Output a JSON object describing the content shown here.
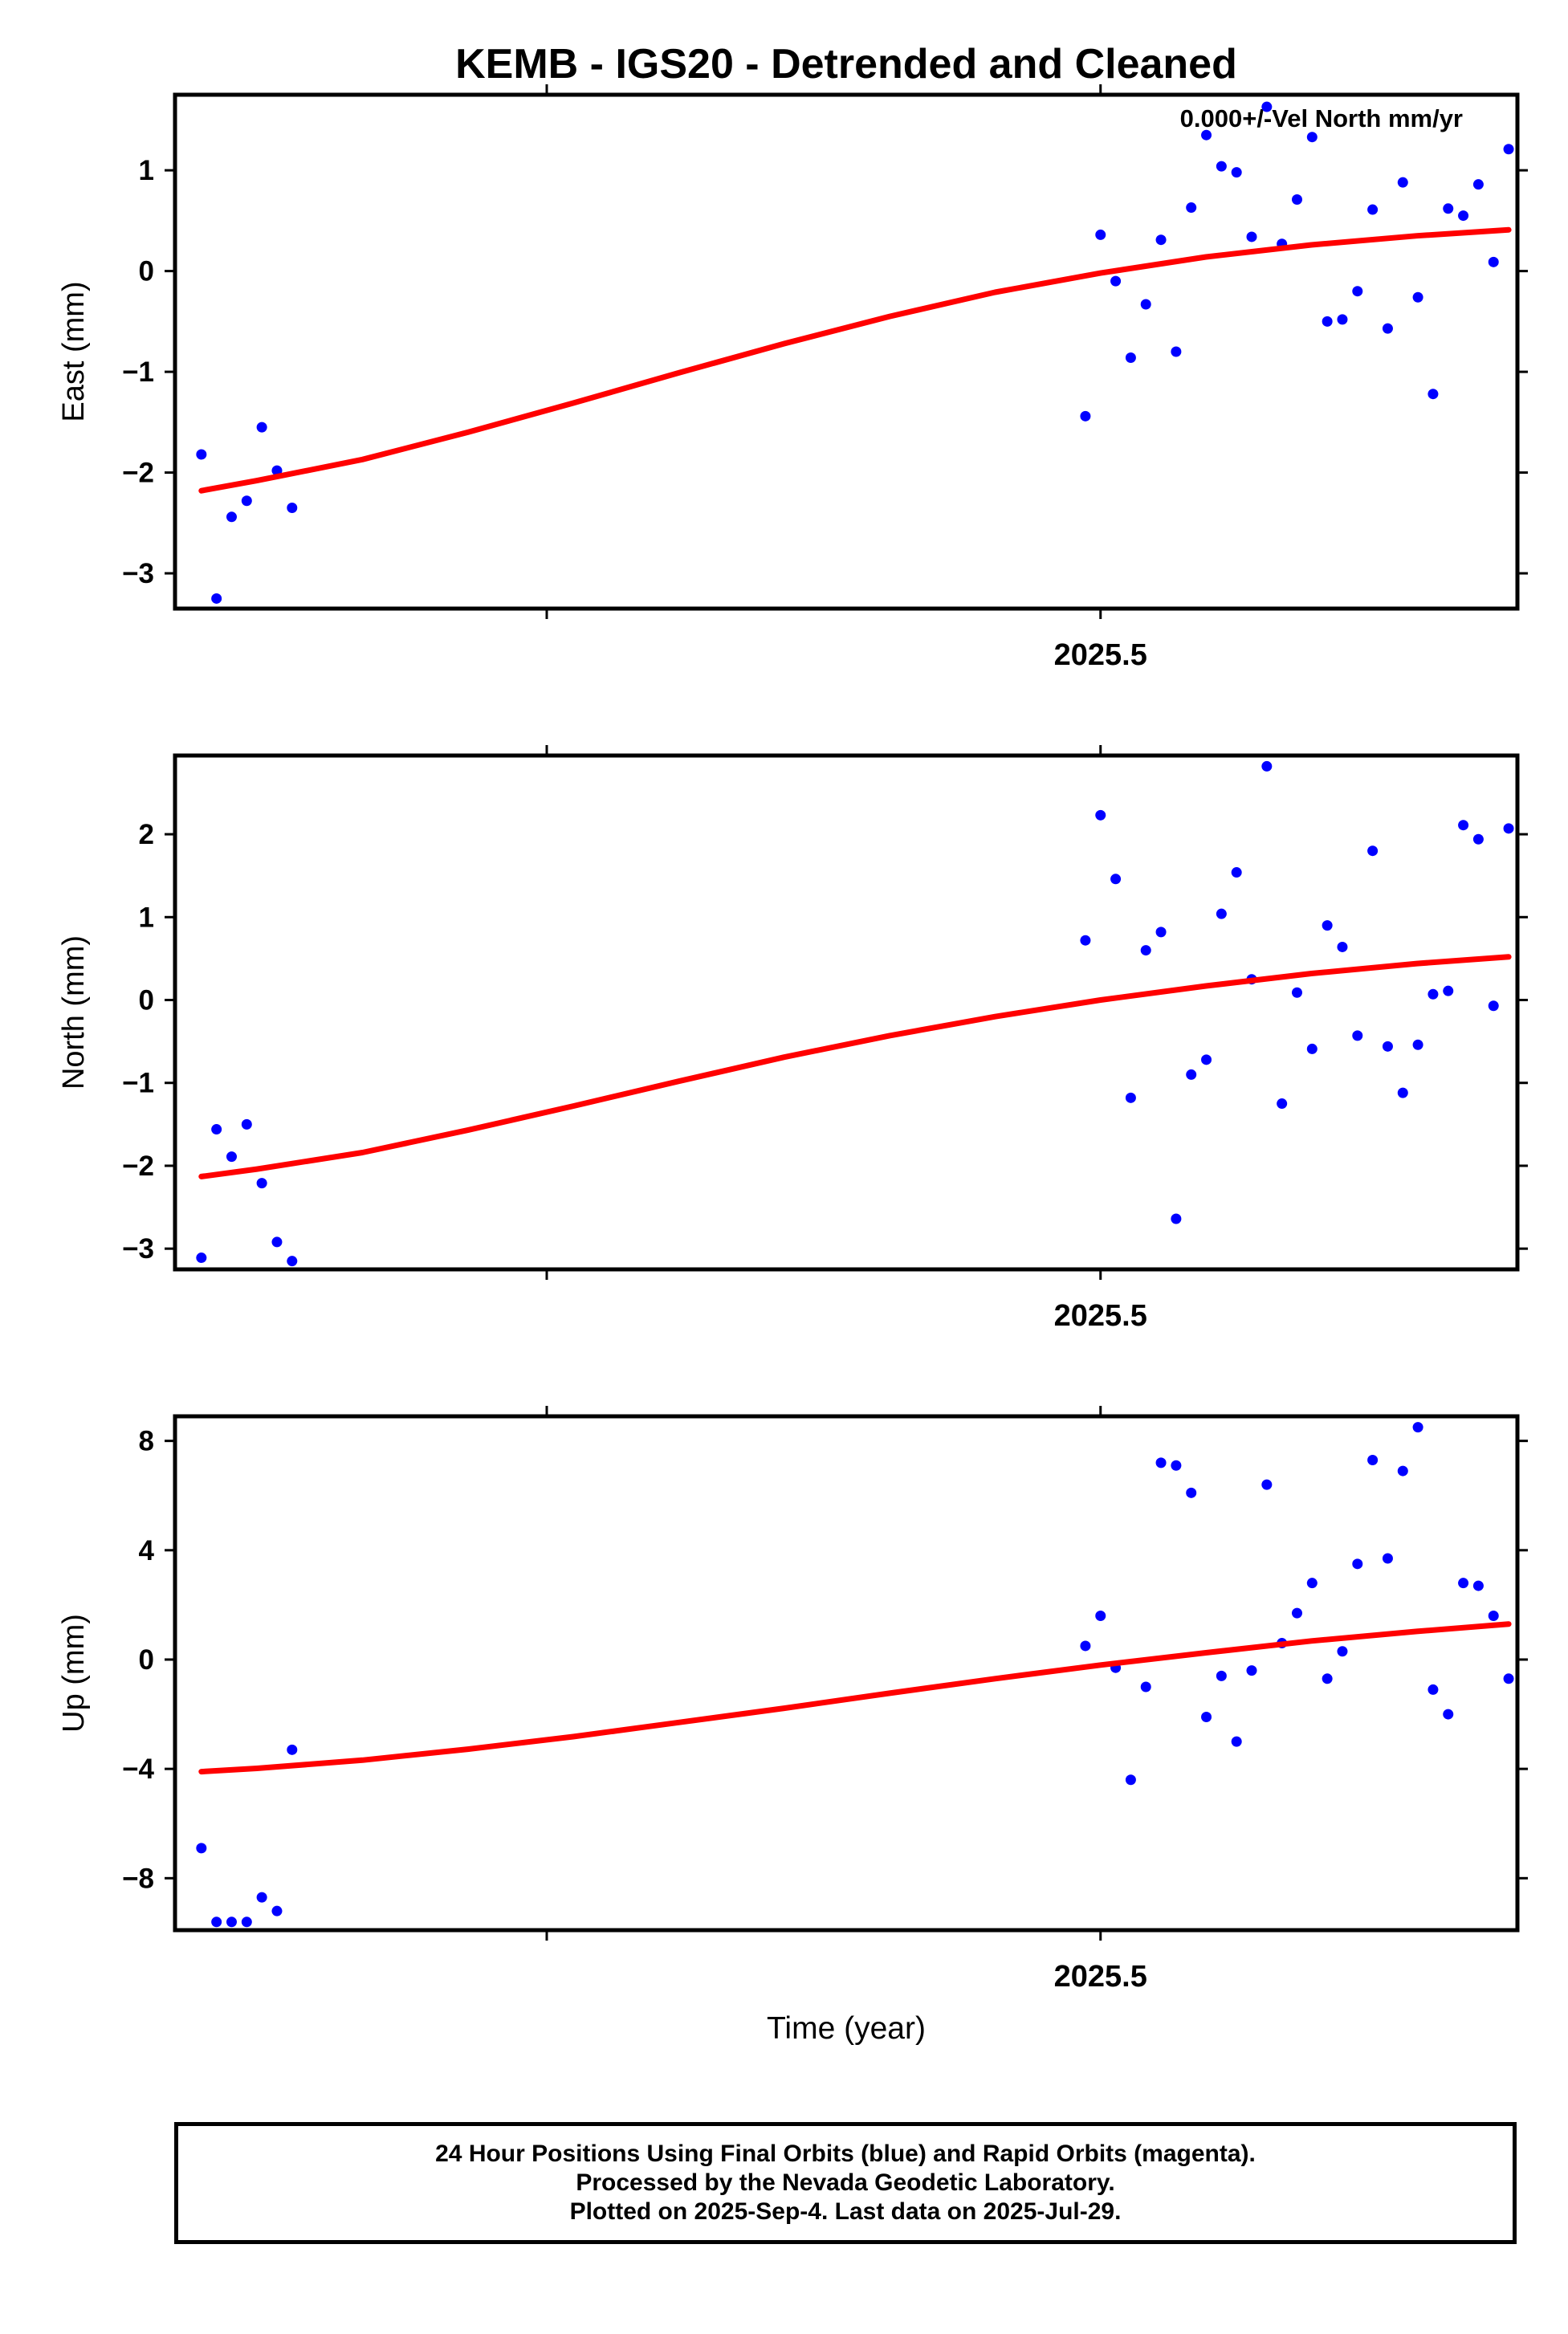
{
  "colors": {
    "final_orbits": "#0000ff",
    "model_fit": "#ff0000",
    "axes": "#000000"
  },
  "footer": {
    "line1": "24 Hour Positions Using Final Orbits (blue) and Rapid Orbits (magenta).",
    "line2": "Processed by the Nevada Geodetic Laboratory.",
    "line3": "Plotted on 2025-Sep-4. Last data on 2025-Jul-29."
  },
  "chart_data": [
    {
      "type": "scatter",
      "title": "KEMB - IGS20 - Detrended and Cleaned",
      "annotation": "0.000+/-Vel North mm/yr",
      "xlabel": "",
      "ylabel": "East (mm)",
      "xlim": [
        2024.9734,
        2025.7372
      ],
      "ylim": [
        -3.35,
        1.75
      ],
      "x_ticks": [
        {
          "value": 2025.5,
          "label": "2025.5"
        },
        {
          "value": 2025.1849,
          "label": ""
        }
      ],
      "y_ticks": [
        {
          "value": 1,
          "label": "1"
        },
        {
          "value": 0,
          "label": "0"
        },
        {
          "value": -1,
          "label": "−1"
        },
        {
          "value": -2,
          "label": "−2"
        },
        {
          "value": -3,
          "label": "−3"
        }
      ],
      "series": [
        {
          "name": "Final Orbits",
          "points": [
            [
              2024.9884,
              -1.82
            ],
            [
              2024.997,
              -3.25
            ],
            [
              2025.0056,
              -2.44
            ],
            [
              2025.0142,
              -2.28
            ],
            [
              2025.0228,
              -1.55
            ],
            [
              2025.0314,
              -1.98
            ],
            [
              2025.04,
              -2.35
            ],
            [
              2025.4914,
              -1.44
            ],
            [
              2025.5,
              0.36
            ],
            [
              2025.5086,
              -0.1
            ],
            [
              2025.5172,
              -0.86
            ],
            [
              2025.5258,
              -0.33
            ],
            [
              2025.5344,
              0.31
            ],
            [
              2025.543,
              -0.8
            ],
            [
              2025.5516,
              0.63
            ],
            [
              2025.5602,
              1.35
            ],
            [
              2025.5688,
              1.04
            ],
            [
              2025.5774,
              0.98
            ],
            [
              2025.586,
              0.34
            ],
            [
              2025.5946,
              1.63
            ],
            [
              2025.6032,
              0.27
            ],
            [
              2025.6118,
              0.71
            ],
            [
              2025.6204,
              1.33
            ],
            [
              2025.629,
              -0.5
            ],
            [
              2025.6376,
              -0.48
            ],
            [
              2025.6462,
              -0.2
            ],
            [
              2025.6548,
              0.61
            ],
            [
              2025.6634,
              -0.57
            ],
            [
              2025.672,
              0.88
            ],
            [
              2025.6806,
              -0.26
            ],
            [
              2025.6892,
              -1.22
            ],
            [
              2025.6978,
              0.62
            ],
            [
              2025.7064,
              0.55
            ],
            [
              2025.715,
              0.86
            ],
            [
              2025.7236,
              0.09
            ],
            [
              2025.7322,
              1.21
            ]
          ]
        },
        {
          "name": "Model",
          "line": [
            [
              2024.9884,
              -2.18
            ],
            [
              2025.02,
              -2.08
            ],
            [
              2025.08,
              -1.87
            ],
            [
              2025.14,
              -1.6
            ],
            [
              2025.2,
              -1.31
            ],
            [
              2025.26,
              -1.01
            ],
            [
              2025.32,
              -0.72
            ],
            [
              2025.38,
              -0.45
            ],
            [
              2025.44,
              -0.21
            ],
            [
              2025.5,
              -0.02
            ],
            [
              2025.56,
              0.14
            ],
            [
              2025.62,
              0.26
            ],
            [
              2025.68,
              0.35
            ],
            [
              2025.7322,
              0.41
            ]
          ]
        }
      ]
    },
    {
      "type": "scatter",
      "title": "",
      "xlabel": "",
      "ylabel": "North (mm)",
      "xlim": [
        2024.9734,
        2025.7372
      ],
      "ylim": [
        -3.25,
        2.95
      ],
      "x_ticks": [
        {
          "value": 2025.5,
          "label": "2025.5"
        },
        {
          "value": 2025.1849,
          "label": ""
        }
      ],
      "y_ticks": [
        {
          "value": 2,
          "label": "2"
        },
        {
          "value": 1,
          "label": "1"
        },
        {
          "value": 0,
          "label": "0"
        },
        {
          "value": -1,
          "label": "−1"
        },
        {
          "value": -2,
          "label": "−2"
        },
        {
          "value": -3,
          "label": "−3"
        }
      ],
      "series": [
        {
          "name": "Final Orbits",
          "points": [
            [
              2024.9884,
              -3.11
            ],
            [
              2024.997,
              -1.56
            ],
            [
              2025.0056,
              -1.89
            ],
            [
              2025.0142,
              -1.5
            ],
            [
              2025.0228,
              -2.21
            ],
            [
              2025.0314,
              -2.92
            ],
            [
              2025.04,
              -3.15
            ],
            [
              2025.4914,
              0.72
            ],
            [
              2025.5,
              2.23
            ],
            [
              2025.5086,
              1.46
            ],
            [
              2025.5172,
              -1.18
            ],
            [
              2025.5258,
              0.6
            ],
            [
              2025.5344,
              0.82
            ],
            [
              2025.543,
              -2.64
            ],
            [
              2025.5516,
              -0.9
            ],
            [
              2025.5602,
              -0.72
            ],
            [
              2025.5688,
              1.04
            ],
            [
              2025.5774,
              1.54
            ],
            [
              2025.586,
              0.25
            ],
            [
              2025.5946,
              2.82
            ],
            [
              2025.6032,
              -1.25
            ],
            [
              2025.6118,
              0.09
            ],
            [
              2025.6204,
              -0.59
            ],
            [
              2025.629,
              0.9
            ],
            [
              2025.6376,
              0.64
            ],
            [
              2025.6462,
              -0.43
            ],
            [
              2025.6548,
              1.8
            ],
            [
              2025.6634,
              -0.56
            ],
            [
              2025.672,
              -1.12
            ],
            [
              2025.6806,
              -0.54
            ],
            [
              2025.6892,
              0.07
            ],
            [
              2025.6978,
              0.11
            ],
            [
              2025.7064,
              2.11
            ],
            [
              2025.715,
              1.94
            ],
            [
              2025.7236,
              -0.07
            ],
            [
              2025.7322,
              2.07
            ]
          ]
        },
        {
          "name": "Model",
          "line": [
            [
              2024.9884,
              -2.13
            ],
            [
              2025.02,
              -2.04
            ],
            [
              2025.08,
              -1.84
            ],
            [
              2025.14,
              -1.57
            ],
            [
              2025.2,
              -1.28
            ],
            [
              2025.26,
              -0.98
            ],
            [
              2025.32,
              -0.69
            ],
            [
              2025.38,
              -0.43
            ],
            [
              2025.44,
              -0.2
            ],
            [
              2025.5,
              0.0
            ],
            [
              2025.56,
              0.17
            ],
            [
              2025.62,
              0.32
            ],
            [
              2025.68,
              0.44
            ],
            [
              2025.7322,
              0.52
            ]
          ]
        }
      ]
    },
    {
      "type": "scatter",
      "title": "",
      "xlabel": "Time (year)",
      "ylabel": "Up (mm)",
      "xlim": [
        2024.9734,
        2025.7372
      ],
      "ylim": [
        -9.9,
        8.9
      ],
      "x_ticks": [
        {
          "value": 2025.5,
          "label": "2025.5"
        },
        {
          "value": 2025.1849,
          "label": ""
        }
      ],
      "y_ticks": [
        {
          "value": 8,
          "label": "8"
        },
        {
          "value": 4,
          "label": "4"
        },
        {
          "value": 0,
          "label": "0"
        },
        {
          "value": -4,
          "label": "−4"
        },
        {
          "value": -8,
          "label": "−8"
        }
      ],
      "series": [
        {
          "name": "Final Orbits",
          "points": [
            [
              2024.9884,
              -6.9
            ],
            [
              2024.997,
              -9.6
            ],
            [
              2025.0056,
              -9.6
            ],
            [
              2025.0142,
              -9.6
            ],
            [
              2025.0228,
              -8.7
            ],
            [
              2025.0314,
              -9.2
            ],
            [
              2025.04,
              -3.3
            ],
            [
              2025.4914,
              0.5
            ],
            [
              2025.5,
              1.6
            ],
            [
              2025.5086,
              -0.3
            ],
            [
              2025.5172,
              -4.4
            ],
            [
              2025.5258,
              -1.0
            ],
            [
              2025.5344,
              7.2
            ],
            [
              2025.543,
              7.1
            ],
            [
              2025.5516,
              6.1
            ],
            [
              2025.5602,
              -2.1
            ],
            [
              2025.5688,
              -0.6
            ],
            [
              2025.5774,
              -3.0
            ],
            [
              2025.586,
              -0.4
            ],
            [
              2025.5946,
              6.4
            ],
            [
              2025.6032,
              0.6
            ],
            [
              2025.6118,
              1.7
            ],
            [
              2025.6204,
              2.8
            ],
            [
              2025.629,
              -0.7
            ],
            [
              2025.6376,
              0.3
            ],
            [
              2025.6462,
              3.5
            ],
            [
              2025.6548,
              7.3
            ],
            [
              2025.6634,
              3.7
            ],
            [
              2025.672,
              6.9
            ],
            [
              2025.6806,
              8.5
            ],
            [
              2025.6892,
              -1.1
            ],
            [
              2025.6978,
              -2.0
            ],
            [
              2025.7064,
              2.8
            ],
            [
              2025.715,
              2.7
            ],
            [
              2025.7236,
              1.6
            ],
            [
              2025.7322,
              -0.7
            ]
          ]
        },
        {
          "name": "Model",
          "line": [
            [
              2024.9884,
              -4.1
            ],
            [
              2025.02,
              -3.98
            ],
            [
              2025.08,
              -3.68
            ],
            [
              2025.14,
              -3.28
            ],
            [
              2025.2,
              -2.82
            ],
            [
              2025.26,
              -2.3
            ],
            [
              2025.32,
              -1.78
            ],
            [
              2025.38,
              -1.23
            ],
            [
              2025.44,
              -0.7
            ],
            [
              2025.5,
              -0.2
            ],
            [
              2025.56,
              0.25
            ],
            [
              2025.62,
              0.68
            ],
            [
              2025.68,
              1.03
            ],
            [
              2025.7322,
              1.3
            ]
          ]
        }
      ]
    }
  ]
}
